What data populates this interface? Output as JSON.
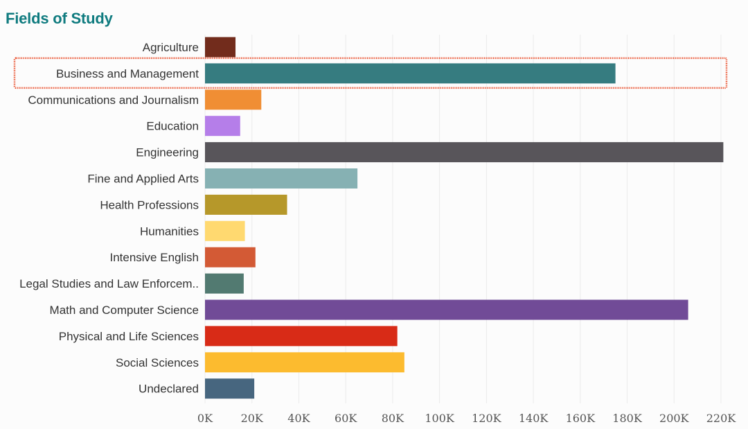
{
  "title": "Fields of Study",
  "chart_data": {
    "type": "bar",
    "orientation": "horizontal",
    "title": "Fields of Study",
    "xlabel": "",
    "ylabel": "",
    "xlim": [
      0,
      220000
    ],
    "x_ticks": [
      0,
      20000,
      40000,
      60000,
      80000,
      100000,
      120000,
      140000,
      160000,
      180000,
      200000,
      220000
    ],
    "x_tick_labels": [
      "0K",
      "20K",
      "40K",
      "60K",
      "80K",
      "100K",
      "120K",
      "140K",
      "160K",
      "180K",
      "200K",
      "220K"
    ],
    "grid": "vertical",
    "categories": [
      "Agriculture",
      "Business and Management",
      "Communications and Journalism",
      "Education",
      "Engineering",
      "Fine and Applied Arts",
      "Health Professions",
      "Humanities",
      "Intensive English",
      "Legal Studies and Law Enforcem..",
      "Math and Computer Science",
      "Physical and Life Sciences",
      "Social Sciences",
      "Undeclared"
    ],
    "values": [
      13000,
      175000,
      24000,
      15000,
      221000,
      65000,
      35000,
      17000,
      21500,
      16500,
      206000,
      82000,
      85000,
      21000
    ],
    "colors": [
      "#722c1c",
      "#367c80",
      "#f08e34",
      "#b57ee9",
      "#58555a",
      "#86b1b3",
      "#b6982a",
      "#ffd970",
      "#d35a35",
      "#527a71",
      "#714b97",
      "#d82b17",
      "#fcbb2f",
      "#47667f"
    ],
    "highlighted_category": "Business and Management",
    "highlight_color": "#e8441f"
  }
}
